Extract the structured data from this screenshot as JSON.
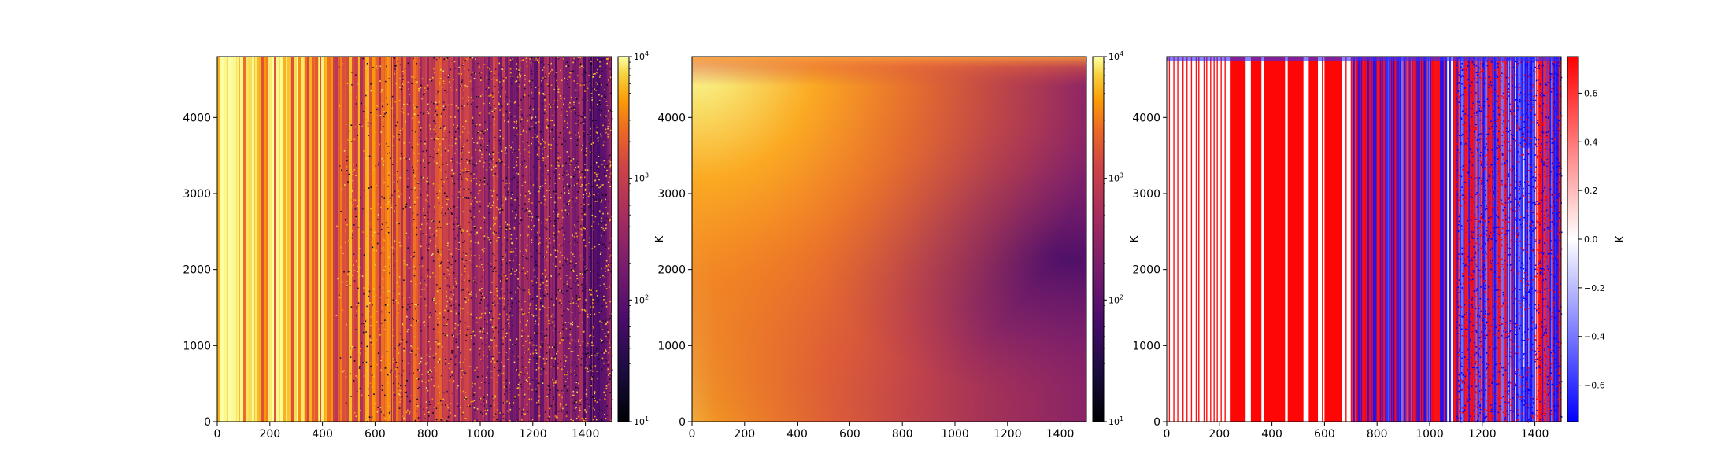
{
  "chart_data": [
    {
      "type": "heatmap",
      "colormap": "inferno",
      "xlim": [
        0,
        1500
      ],
      "ylim": [
        0,
        4800
      ],
      "xticks": [
        0,
        200,
        400,
        600,
        800,
        1000,
        1200,
        1400
      ],
      "yticks": [
        0,
        1000,
        2000,
        3000,
        4000
      ],
      "colorbar": {
        "scale": "log",
        "range": [
          10,
          10000
        ],
        "ticks": [
          [
            "10",
            "1"
          ],
          [
            "10",
            "2"
          ],
          [
            "10",
            "3"
          ],
          [
            "10",
            "4"
          ]
        ],
        "label": "K"
      }
    },
    {
      "type": "heatmap",
      "colormap": "inferno",
      "xlim": [
        0,
        1500
      ],
      "ylim": [
        0,
        4800
      ],
      "xticks": [
        0,
        200,
        400,
        600,
        800,
        1000,
        1200,
        1400
      ],
      "yticks": [
        0,
        1000,
        2000,
        3000,
        4000
      ],
      "colorbar": {
        "scale": "log",
        "range": [
          10,
          10000
        ],
        "ticks": [
          [
            "10",
            "1"
          ],
          [
            "10",
            "2"
          ],
          [
            "10",
            "3"
          ],
          [
            "10",
            "4"
          ]
        ],
        "label": "K"
      }
    },
    {
      "type": "heatmap",
      "colormap": "bwr",
      "xlim": [
        0,
        1500
      ],
      "ylim": [
        0,
        4800
      ],
      "xticks": [
        0,
        200,
        400,
        600,
        800,
        1000,
        1200,
        1400
      ],
      "yticks": [
        0,
        1000,
        2000,
        3000,
        4000
      ],
      "colorbar": {
        "scale": "linear",
        "range": [
          -0.75,
          0.75
        ],
        "ticks": [
          "0.6",
          "0.4",
          "0.2",
          "0.0",
          "−0.2",
          "−0.4",
          "−0.6"
        ],
        "tick_values": [
          0.6,
          0.4,
          0.2,
          0.0,
          -0.2,
          -0.4,
          -0.6
        ],
        "label": "K"
      }
    }
  ]
}
